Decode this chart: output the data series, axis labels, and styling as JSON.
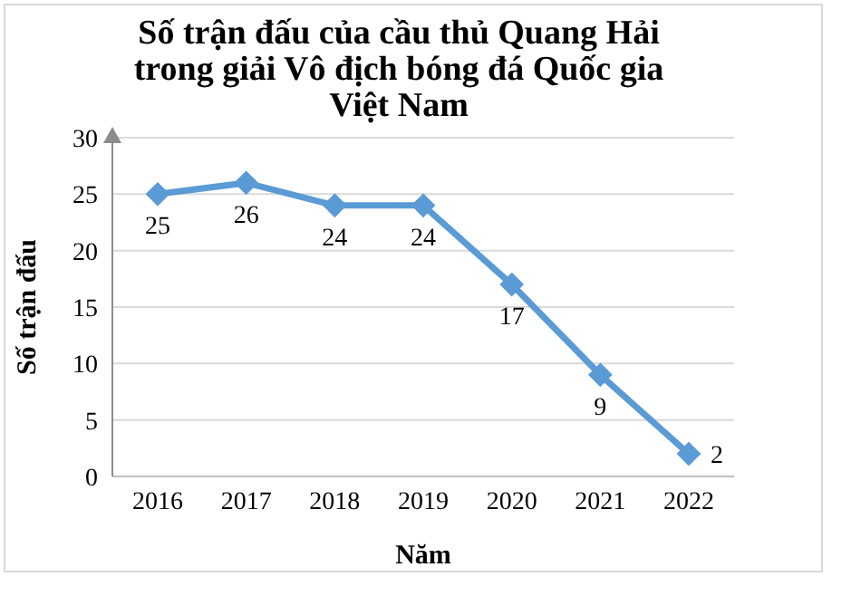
{
  "chart_data": {
    "type": "line",
    "title": "Số trận đấu của cầu thủ Quang Hải trong giải Vô địch bóng đá Quốc gia Việt Nam",
    "xlabel": "Năm",
    "ylabel": "Số trận đấu",
    "categories": [
      "2016",
      "2017",
      "2018",
      "2019",
      "2020",
      "2021",
      "2022"
    ],
    "series": [
      {
        "color": "#5b9bd5",
        "values": [
          25,
          26,
          24,
          24,
          17,
          9,
          2
        ]
      }
    ],
    "ylim": [
      0,
      30
    ],
    "yticks": [
      0,
      5,
      10,
      15,
      20,
      25,
      30
    ],
    "grid": "y",
    "marker": "diamond",
    "line_style": "solid",
    "data_labels": true
  }
}
